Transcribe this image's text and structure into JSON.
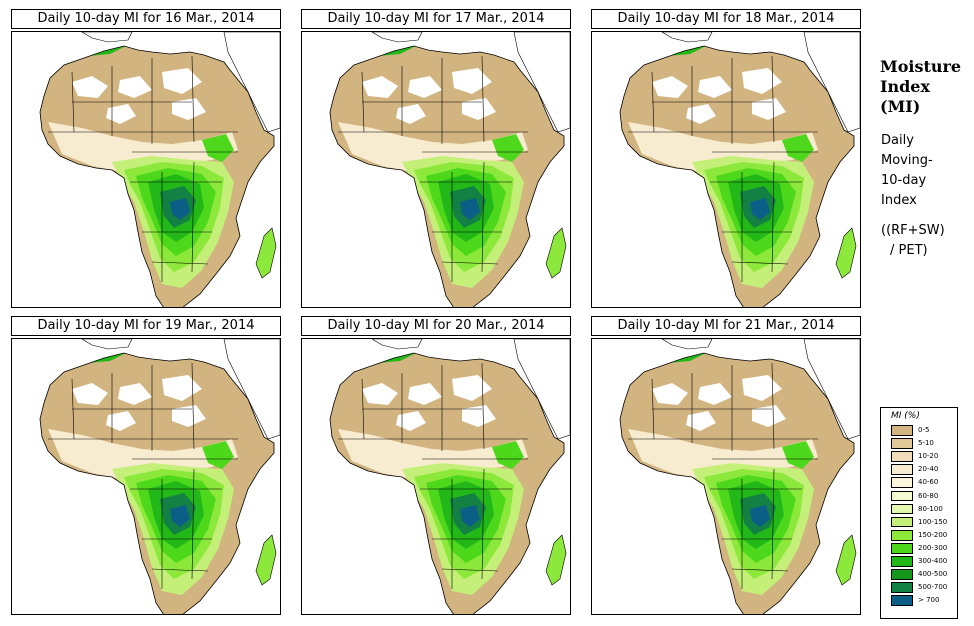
{
  "panels": [
    {
      "title": "Daily 10-day MI for  16 Mar., 2014"
    },
    {
      "title": "Daily 10-day MI for  17 Mar., 2014"
    },
    {
      "title": "Daily 10-day MI for  18 Mar., 2014"
    },
    {
      "title": "Daily 10-day MI for  19 Mar., 2014"
    },
    {
      "title": "Daily 10-day MI for  20 Mar., 2014"
    },
    {
      "title": "Daily 10-day MI for  21 Mar., 2014"
    }
  ],
  "sidebar": {
    "title_line1": "Moisture",
    "title_line2": "Index",
    "title_line3": "(MI)",
    "desc_line1": "Daily",
    "desc_line2": "Moving-",
    "desc_line3": "10-day",
    "desc_line4": "Index",
    "formula_line1": "((RF+SW)",
    "formula_line2": "/ PET)"
  },
  "legend": {
    "title": "MI (%)",
    "items": [
      {
        "label": "0-5",
        "color": "#d2b480"
      },
      {
        "label": "5-10",
        "color": "#e2c99a"
      },
      {
        "label": "10-20",
        "color": "#f0dcb8"
      },
      {
        "label": "20-40",
        "color": "#f8ecd0"
      },
      {
        "label": "40-60",
        "color": "#fbf6dc"
      },
      {
        "label": "60-80",
        "color": "#f3fbcf"
      },
      {
        "label": "80-100",
        "color": "#e4f8b0"
      },
      {
        "label": "100-150",
        "color": "#c4f07a"
      },
      {
        "label": "150-200",
        "color": "#8ce83a"
      },
      {
        "label": "200-300",
        "color": "#4ed81c"
      },
      {
        "label": "300-400",
        "color": "#22b818"
      },
      {
        "label": "400-500",
        "color": "#14961a"
      },
      {
        "label": "500-700",
        "color": "#138044"
      },
      {
        "label": "> 700",
        "color": "#0b5e86"
      }
    ]
  }
}
